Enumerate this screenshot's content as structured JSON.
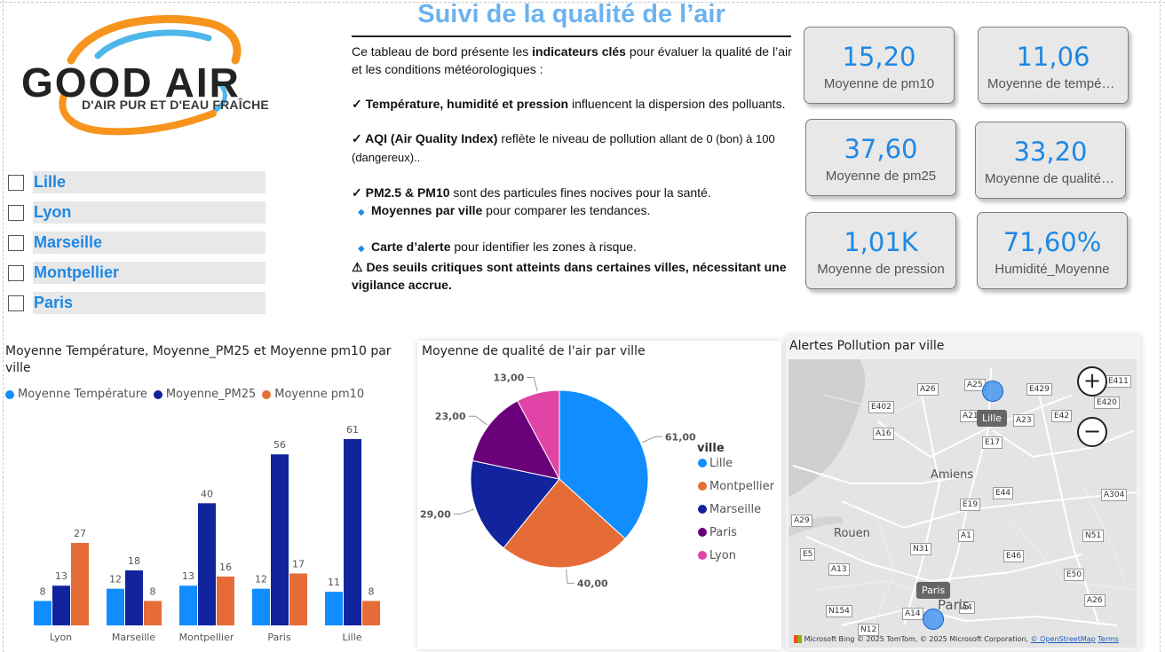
{
  "logo": {
    "name": "GOOD AIR",
    "tagline": "D'AIR PUR ET D'EAU FRAÎCHE"
  },
  "header": {
    "title": "Suivi de la qualité de l’air"
  },
  "description": {
    "p1_a": "Ce tableau de bord présente les ",
    "p1_b": "indicateurs clés",
    "p1_c": " pour évaluer la qualité de l’air et les conditions météorologiques :",
    "p2_a": "✓ Température, humidité et pression",
    "p2_b": " influencent la dispersion des polluants.",
    "p3_a": "✓ AQI (Air Quality Index)",
    "p3_b": " reflète le niveau de pollution ",
    "p3_c": "allant de 0 (bon) à 100 (dangereux)..",
    "p4_a": "✓ PM2.5 & PM10",
    "p4_b": " sont des particules fines nocives pour la santé.",
    "p5_bullet": "◆",
    "p5_a": "Moyennes par ville",
    "p5_b": " pour comparer les tendances.",
    "p6_bullet": "◆",
    "p6_a": "Carte d’alerte",
    "p6_b": " pour identifier les zones à risque.",
    "p7": "⚠ Des seuils critiques sont atteints dans certaines villes, nécessitant une vigilance accrue."
  },
  "slicer": {
    "items": [
      "Lille",
      "Lyon",
      "Marseille",
      "Montpellier",
      "Paris"
    ]
  },
  "kpis": [
    {
      "value": "15,20",
      "label": "Moyenne de pm10"
    },
    {
      "value": "11,06",
      "label": "Moyenne de température"
    },
    {
      "value": "37,60",
      "label": "Moyenne de pm25"
    },
    {
      "value": "33,20",
      "label": "Moyenne de qualité de l'air"
    },
    {
      "value": "1,01K",
      "label": "Moyenne de pression"
    },
    {
      "value": "71,60%",
      "label": "Humidité_Moyenne"
    }
  ],
  "bar_chart": {
    "title": "Moyenne Température, Moyenne_PM25 et Moyenne pm10 par ville",
    "legend": [
      "Moyenne Température",
      "Moyenne_PM25",
      "Moyenne pm10"
    ]
  },
  "pie_chart": {
    "title": "Moyenne de qualité de l'air par ville",
    "legend_title": "ville"
  },
  "map": {
    "title": "Alertes Pollution par ville",
    "zoom_in": "+",
    "zoom_out": "−",
    "roads": [
      "A26",
      "A25",
      "E429",
      "E411",
      "E402",
      "A21",
      "A23",
      "E42",
      "E420",
      "A16",
      "E17",
      "E44",
      "A304",
      "A29",
      "E19",
      "A1",
      "N51",
      "E5",
      "N31",
      "E46",
      "A13",
      "E50",
      "N154",
      "A14",
      "A4",
      "A26",
      "N12"
    ],
    "places": {
      "amiens": "Amiens",
      "rouen": "Rouen",
      "paris": "Paris"
    },
    "markers": [
      {
        "label": "Lille"
      },
      {
        "label": "Paris"
      }
    ],
    "brand": "Microsoft Bing",
    "attribution": "© 2025 TomTom, © 2025 Microsoft Corporation, ",
    "osm": "© OpenStreetMap",
    "terms": "Terms"
  },
  "colors": {
    "temperature": "#118dff",
    "pm25": "#12239e",
    "pm10": "#e66c37",
    "paris": "#6b007b",
    "lyon": "#e044a7",
    "accent": "#1e88e5"
  },
  "chart_data": [
    {
      "type": "bar",
      "title": "Moyenne Température, Moyenne_PM25 et Moyenne pm10 par ville",
      "categories": [
        "Lyon",
        "Marseille",
        "Montpellier",
        "Paris",
        "Lille"
      ],
      "series": [
        {
          "name": "Moyenne Température",
          "values": [
            8,
            12,
            13,
            12,
            11
          ],
          "color": "#118dff"
        },
        {
          "name": "Moyenne_PM25",
          "values": [
            13,
            18,
            40,
            56,
            61
          ],
          "color": "#12239e"
        },
        {
          "name": "Moyenne pm10",
          "values": [
            27,
            8,
            16,
            17,
            8
          ],
          "color": "#e66c37"
        }
      ],
      "ylim": [
        0,
        61
      ],
      "legend": "top-left",
      "grid": false
    },
    {
      "type": "pie",
      "title": "Moyenne de qualité de l'air par ville",
      "legend_title": "ville",
      "legend": "right",
      "slices": [
        {
          "label": "Lille",
          "value": 61.0,
          "display": "61,00",
          "color": "#118dff"
        },
        {
          "label": "Montpellier",
          "value": 40.0,
          "display": "40,00",
          "color": "#e66c37"
        },
        {
          "label": "Marseille",
          "value": 29.0,
          "display": "29,00",
          "color": "#12239e"
        },
        {
          "label": "Paris",
          "value": 23.0,
          "display": "23,00",
          "color": "#6b007b"
        },
        {
          "label": "Lyon",
          "value": 13.0,
          "display": "13,00",
          "color": "#e044a7"
        }
      ]
    }
  ]
}
